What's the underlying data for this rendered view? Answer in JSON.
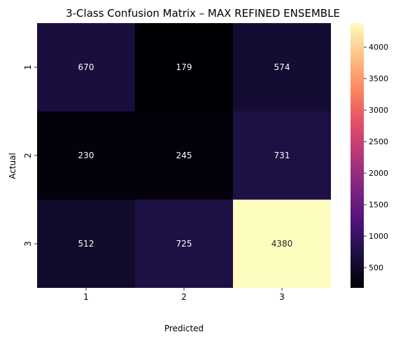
{
  "chart_data": {
    "type": "heatmap",
    "title": "3-Class Confusion Matrix – MAX REFINED ENSEMBLE",
    "xlabel": "Predicted",
    "ylabel": "Actual",
    "x_categories": [
      "1",
      "2",
      "3"
    ],
    "y_categories": [
      "1",
      "2",
      "3"
    ],
    "values": [
      [
        670,
        179,
        574
      ],
      [
        230,
        245,
        731
      ],
      [
        512,
        725,
        4380
      ]
    ],
    "colormap": "magma",
    "colorbar": {
      "min": 179,
      "max": 4380,
      "ticks": [
        500,
        1000,
        1500,
        2000,
        2500,
        3000,
        3500,
        4000
      ]
    },
    "annotation_color_dark_cells": "#ffffff",
    "annotation_color_light_cells": "#262626"
  }
}
